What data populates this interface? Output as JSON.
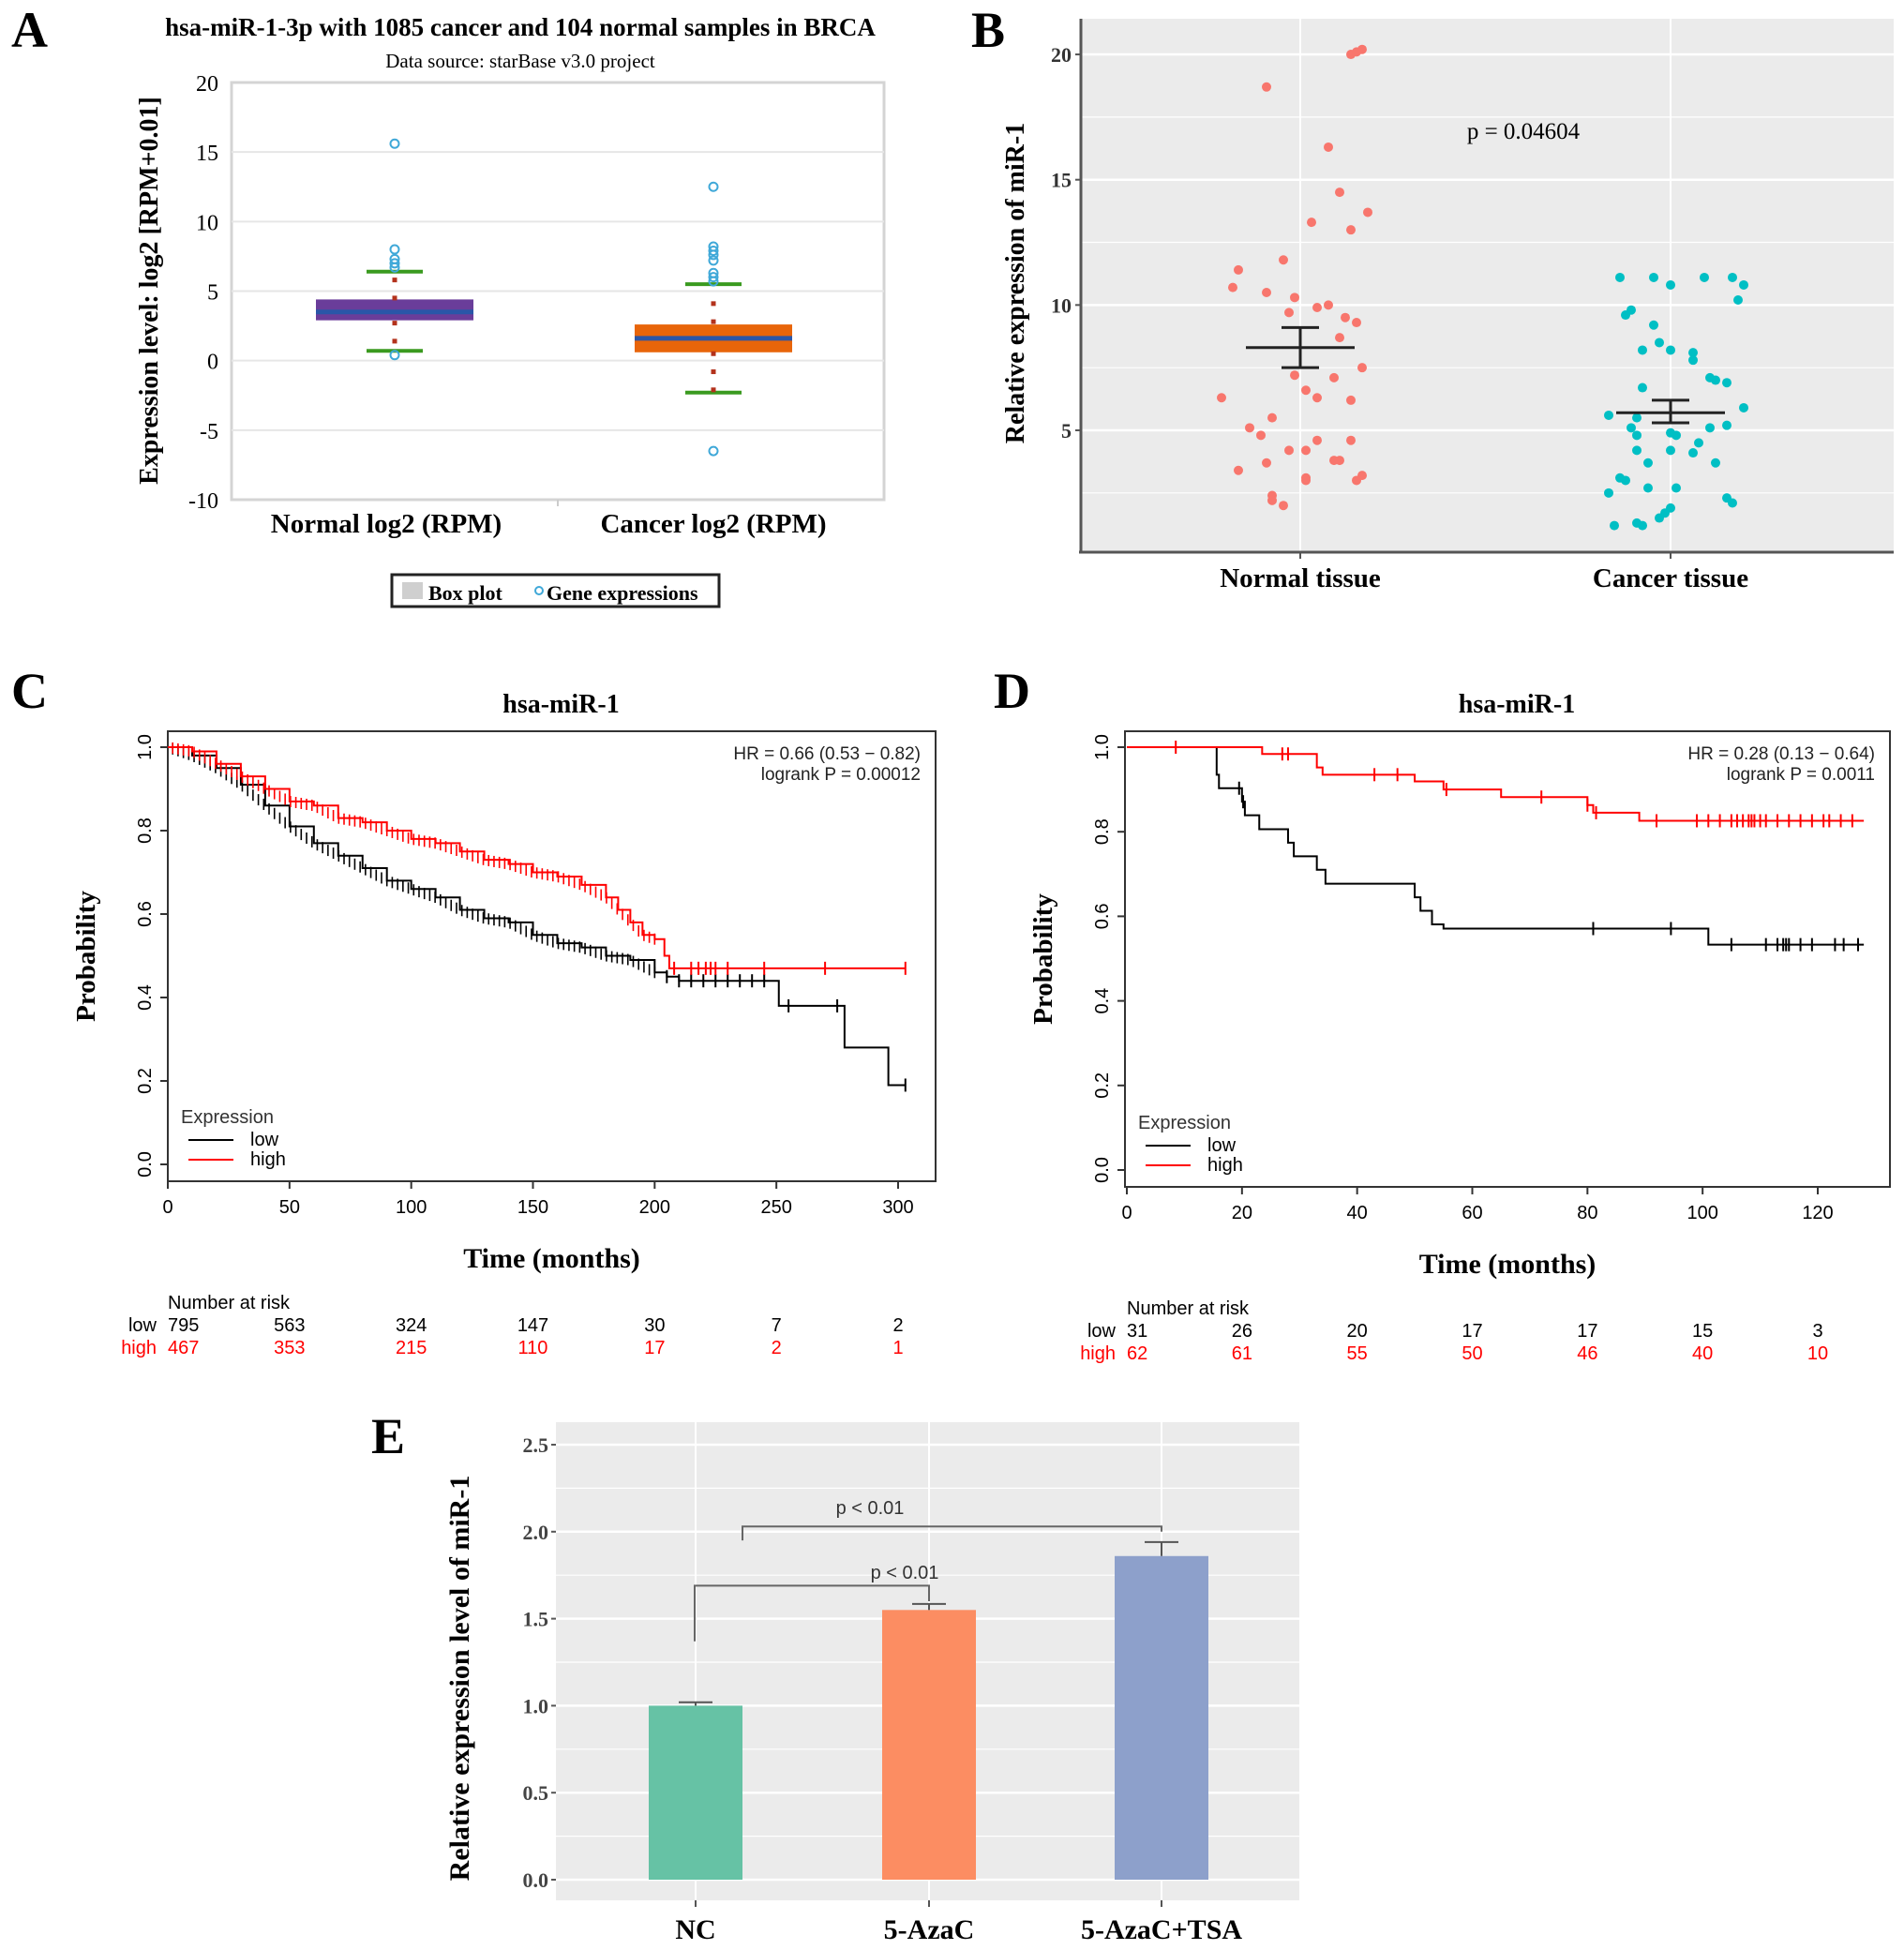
{
  "panels": {
    "A": {
      "letter": "A"
    },
    "B": {
      "letter": "B"
    },
    "C": {
      "letter": "C"
    },
    "D": {
      "letter": "D"
    },
    "E": {
      "letter": "E"
    }
  },
  "chart_data": [
    {
      "id": "A",
      "type": "box",
      "title": "hsa-miR-1-3p with 1085 cancer and 104 normal samples in BRCA",
      "subtitle": "Data source: starBase v3.0 project",
      "ylabel": "Expression level: log2 [RPM+0.01]",
      "ylim": [
        -10,
        20
      ],
      "yticks": [
        20,
        15,
        10,
        5,
        0,
        -5,
        -10
      ],
      "categories": [
        "Normal log2 (RPM)",
        "Cancer log2 (RPM)"
      ],
      "legend": {
        "position": "bottom",
        "items": [
          "Box plot",
          "Gene expressions"
        ]
      },
      "boxes": [
        {
          "name": "Normal log2 (RPM)",
          "q1": 2.9,
          "median": 3.5,
          "q3": 4.4,
          "whisker_low": 0.7,
          "whisker_high": 6.4,
          "color": "#6a3d9a",
          "median_color": "#2a56a8",
          "inner_points": [
            5.8,
            4.5,
            2.7,
            1.4
          ],
          "outliers": [
            15.6,
            8.0,
            7.3,
            7.0,
            6.7,
            0.4
          ]
        },
        {
          "name": "Cancer log2 (RPM)",
          "q1": 0.6,
          "median": 1.6,
          "q3": 2.6,
          "whisker_low": -2.3,
          "whisker_high": 5.5,
          "color": "#e8650a",
          "median_color": "#2a56a8",
          "inner_points": [
            4.1,
            2.8,
            0.5,
            -0.8,
            -2.1
          ],
          "outliers": [
            12.5,
            8.2,
            7.9,
            7.6,
            7.2,
            6.3,
            6.0,
            5.7,
            -6.5
          ]
        }
      ]
    },
    {
      "id": "B",
      "type": "scatter",
      "ylabel": "Relative expression of miR-1",
      "yticks": [
        5,
        10,
        15,
        20
      ],
      "ylim": [
        1.0,
        21.5
      ],
      "categories": [
        "Normal tissue",
        "Cancer tissue"
      ],
      "annotation": "p = 0.04604",
      "series": [
        {
          "name": "Normal tissue",
          "color": "#f8766d",
          "mean": 8.3,
          "se_low": 7.5,
          "se_high": 9.1,
          "points": [
            [
              0.45,
              20.0
            ],
            [
              0.5,
              20.1
            ],
            [
              0.55,
              20.2
            ],
            [
              -0.3,
              18.7
            ],
            [
              0.25,
              16.3
            ],
            [
              0.35,
              14.5
            ],
            [
              0.6,
              13.7
            ],
            [
              0.1,
              13.3
            ],
            [
              0.45,
              13.0
            ],
            [
              -0.15,
              11.8
            ],
            [
              -0.55,
              11.4
            ],
            [
              -0.6,
              10.7
            ],
            [
              -0.3,
              10.5
            ],
            [
              -0.05,
              10.3
            ],
            [
              0.15,
              9.9
            ],
            [
              0.25,
              10.0
            ],
            [
              -0.1,
              9.7
            ],
            [
              0.4,
              9.5
            ],
            [
              0.5,
              9.3
            ],
            [
              0.35,
              8.7
            ],
            [
              0.55,
              7.5
            ],
            [
              -0.05,
              7.2
            ],
            [
              0.3,
              7.1
            ],
            [
              0.05,
              6.6
            ],
            [
              0.15,
              6.3
            ],
            [
              0.45,
              6.2
            ],
            [
              -0.7,
              6.3
            ],
            [
              -0.25,
              5.5
            ],
            [
              -0.45,
              5.1
            ],
            [
              -0.35,
              4.8
            ],
            [
              -0.1,
              4.2
            ],
            [
              0.05,
              4.2
            ],
            [
              0.15,
              4.6
            ],
            [
              0.45,
              4.6
            ],
            [
              -0.55,
              3.4
            ],
            [
              -0.3,
              3.7
            ],
            [
              0.3,
              3.8
            ],
            [
              0.35,
              3.8
            ],
            [
              0.05,
              3.1
            ],
            [
              0.05,
              3.0
            ],
            [
              0.55,
              3.2
            ],
            [
              0.5,
              3.0
            ],
            [
              -0.25,
              2.4
            ],
            [
              -0.25,
              2.2
            ],
            [
              -0.15,
              2.0
            ]
          ]
        },
        {
          "name": "Cancer tissue",
          "color": "#00bfc4",
          "mean": 5.7,
          "se_low": 5.3,
          "se_high": 6.2,
          "points": [
            [
              -0.45,
              11.1
            ],
            [
              -0.15,
              11.1
            ],
            [
              0.3,
              11.1
            ],
            [
              0.55,
              11.1
            ],
            [
              0.0,
              10.8
            ],
            [
              0.65,
              10.8
            ],
            [
              0.6,
              10.2
            ],
            [
              -0.4,
              9.6
            ],
            [
              -0.35,
              9.8
            ],
            [
              -0.15,
              9.2
            ],
            [
              -0.1,
              8.5
            ],
            [
              0.0,
              8.2
            ],
            [
              0.2,
              8.1
            ],
            [
              -0.25,
              8.2
            ],
            [
              0.2,
              7.8
            ],
            [
              0.35,
              7.1
            ],
            [
              0.4,
              7.0
            ],
            [
              0.5,
              6.9
            ],
            [
              -0.25,
              6.7
            ],
            [
              0.65,
              5.9
            ],
            [
              -0.55,
              5.6
            ],
            [
              -0.3,
              5.5
            ],
            [
              -0.35,
              5.1
            ],
            [
              -0.3,
              4.8
            ],
            [
              0.0,
              4.9
            ],
            [
              0.05,
              4.8
            ],
            [
              0.35,
              5.1
            ],
            [
              0.5,
              5.2
            ],
            [
              -0.3,
              4.2
            ],
            [
              0.0,
              4.2
            ],
            [
              0.2,
              4.1
            ],
            [
              0.25,
              4.5
            ],
            [
              -0.2,
              3.7
            ],
            [
              0.4,
              3.7
            ],
            [
              -0.45,
              3.1
            ],
            [
              -0.4,
              3.0
            ],
            [
              -0.2,
              2.7
            ],
            [
              0.05,
              2.7
            ],
            [
              -0.55,
              2.5
            ],
            [
              0.5,
              2.3
            ],
            [
              0.55,
              2.1
            ],
            [
              0.0,
              1.9
            ],
            [
              -0.05,
              1.7
            ],
            [
              -0.1,
              1.5
            ],
            [
              -0.5,
              1.2
            ],
            [
              -0.3,
              1.3
            ],
            [
              -0.25,
              1.2
            ]
          ]
        }
      ]
    },
    {
      "id": "C",
      "type": "line",
      "subtype": "kaplan-meier",
      "title": "hsa-miR-1",
      "xlabel": "Time (months)",
      "ylabel": "Probability",
      "xlim": [
        0,
        310
      ],
      "ylim": [
        0,
        1
      ],
      "xticks": [
        0,
        50,
        100,
        150,
        200,
        250,
        300
      ],
      "yticks": [
        "0.0",
        "0.2",
        "0.4",
        "0.6",
        "0.8",
        "1.0"
      ],
      "stats": [
        "HR = 0.66 (0.53 − 0.82)",
        "logrank P = 0.00012"
      ],
      "legend": {
        "title": "Expression",
        "position": "bottom-left",
        "items": [
          "low",
          "high"
        ]
      },
      "risk_table": {
        "title": "Number at risk",
        "times": [
          0,
          50,
          100,
          150,
          200,
          250,
          300
        ],
        "rows": [
          {
            "label": "low",
            "values": [
              "795",
              "563",
              "324",
              "147",
              "30",
              "7",
              "2"
            ]
          },
          {
            "label": "high",
            "values": [
              "467",
              "353",
              "215",
              "110",
              "17",
              "2",
              "1"
            ]
          }
        ]
      },
      "series": [
        {
          "name": "low",
          "color": "#000000",
          "x": [
            0,
            10,
            20,
            30,
            40,
            50,
            60,
            70,
            80,
            90,
            100,
            110,
            120,
            130,
            140,
            150,
            160,
            170,
            180,
            190,
            200,
            205,
            210,
            230,
            250,
            251,
            277,
            278,
            295,
            296,
            303
          ],
          "y": [
            1.0,
            0.98,
            0.95,
            0.91,
            0.86,
            0.81,
            0.77,
            0.74,
            0.71,
            0.68,
            0.66,
            0.64,
            0.61,
            0.59,
            0.58,
            0.55,
            0.53,
            0.52,
            0.5,
            0.49,
            0.46,
            0.45,
            0.44,
            0.44,
            0.44,
            0.38,
            0.38,
            0.28,
            0.28,
            0.19,
            0.19
          ],
          "censor_x": [
            205,
            210,
            215,
            220,
            225,
            230,
            235,
            240,
            245,
            255,
            275,
            303
          ]
        },
        {
          "name": "high",
          "color": "#ff0000",
          "x": [
            0,
            10,
            20,
            30,
            40,
            50,
            60,
            70,
            80,
            90,
            100,
            110,
            120,
            130,
            140,
            150,
            160,
            170,
            180,
            185,
            190,
            195,
            200,
            203,
            204,
            206,
            303
          ],
          "y": [
            1.0,
            0.99,
            0.96,
            0.93,
            0.9,
            0.87,
            0.86,
            0.83,
            0.82,
            0.8,
            0.78,
            0.77,
            0.75,
            0.73,
            0.72,
            0.7,
            0.69,
            0.67,
            0.64,
            0.61,
            0.58,
            0.55,
            0.54,
            0.54,
            0.5,
            0.47,
            0.47
          ],
          "censor_x": [
            208,
            215,
            218,
            221,
            223,
            225,
            230,
            245,
            270,
            303
          ]
        }
      ]
    },
    {
      "id": "D",
      "type": "line",
      "subtype": "kaplan-meier",
      "title": "hsa-miR-1",
      "xlabel": "Time (months)",
      "ylabel": "Probability",
      "xlim": [
        0,
        130
      ],
      "ylim": [
        0,
        1
      ],
      "xticks": [
        0,
        20,
        40,
        60,
        80,
        100,
        120
      ],
      "yticks": [
        "0.0",
        "0.2",
        "0.4",
        "0.6",
        "0.8",
        "1.0"
      ],
      "stats": [
        "HR = 0.28 (0.13 − 0.64)",
        "logrank P = 0.0011"
      ],
      "legend": {
        "title": "Expression",
        "position": "bottom-left",
        "items": [
          "low",
          "high"
        ]
      },
      "risk_table": {
        "title": "Number at risk",
        "times": [
          0,
          20,
          40,
          60,
          80,
          100,
          120
        ],
        "rows": [
          {
            "label": "low",
            "values": [
              "31",
              "26",
              "20",
              "17",
              "17",
              "15",
              "3"
            ]
          },
          {
            "label": "high",
            "values": [
              "62",
              "61",
              "55",
              "50",
              "46",
              "40",
              "10"
            ]
          }
        ]
      },
      "series": [
        {
          "name": "low",
          "color": "#000000",
          "x": [
            0,
            15.5,
            15.6,
            16,
            20,
            20.5,
            23,
            28,
            29,
            33,
            34.5,
            50,
            51,
            53,
            55,
            101,
            128
          ],
          "y": [
            1.0,
            1.0,
            0.935,
            0.903,
            0.871,
            0.839,
            0.806,
            0.774,
            0.742,
            0.71,
            0.677,
            0.645,
            0.613,
            0.581,
            0.571,
            0.533,
            0.533
          ],
          "censor_x": [
            19.5,
            20.2,
            81,
            94.5,
            105,
            111,
            113,
            114,
            114.5,
            115,
            117,
            119,
            123,
            124.5,
            127
          ]
        },
        {
          "name": "high",
          "color": "#ff0000",
          "x": [
            0,
            23.5,
            33,
            34,
            50,
            55,
            65,
            80,
            81,
            89,
            128
          ],
          "y": [
            1.0,
            0.984,
            0.952,
            0.935,
            0.919,
            0.9,
            0.882,
            0.863,
            0.845,
            0.826,
            0.826
          ],
          "censor_x": [
            8.5,
            27,
            28,
            43,
            47,
            55.5,
            72,
            80,
            81.5,
            92,
            99,
            101,
            103,
            105,
            106,
            107,
            108,
            108.5,
            109,
            110,
            111,
            113,
            115,
            117,
            119,
            121,
            122,
            124,
            126
          ]
        }
      ]
    },
    {
      "id": "E",
      "type": "bar",
      "ylabel": "Relative expression level of miR-1",
      "ylim": [
        -0.1,
        2.6
      ],
      "yticks": [
        "0.0",
        "0.5",
        "1.0",
        "1.5",
        "2.0",
        "2.5"
      ],
      "categories": [
        "NC",
        "5-AzaC",
        "5-AzaC+TSA"
      ],
      "values": [
        1.0,
        1.55,
        1.86
      ],
      "errors": [
        0.02,
        0.035,
        0.08
      ],
      "colors": [
        "#66c2a5",
        "#fc8d62",
        "#8da0cb"
      ],
      "comparisons": [
        {
          "from": "NC",
          "to": "5-AzaC",
          "label": "p < 0.01"
        },
        {
          "from": "NC",
          "to": "5-AzaC+TSA",
          "label": "p < 0.01"
        }
      ]
    }
  ]
}
